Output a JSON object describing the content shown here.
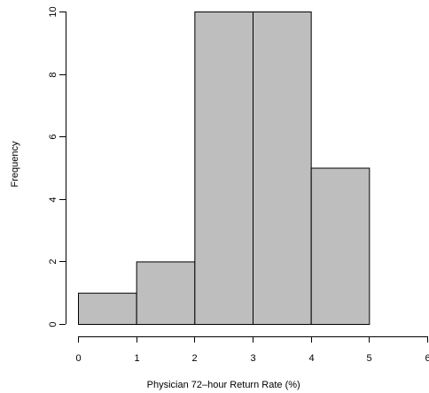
{
  "chart_data": {
    "type": "bar",
    "subtype": "histogram",
    "title": "",
    "xlabel": "Physician 72–hour Return Rate (%)",
    "ylabel": "Frequency",
    "bins": [
      {
        "from": 0,
        "to": 1,
        "count": 1
      },
      {
        "from": 1,
        "to": 2,
        "count": 2
      },
      {
        "from": 2,
        "to": 3,
        "count": 10
      },
      {
        "from": 3,
        "to": 4,
        "count": 10
      },
      {
        "from": 4,
        "to": 5,
        "count": 5
      }
    ],
    "xlim": [
      0,
      6
    ],
    "ylim": [
      0,
      10
    ],
    "x_ticks": [
      0,
      1,
      2,
      3,
      4,
      5,
      6
    ],
    "y_ticks": [
      0,
      2,
      4,
      6,
      8,
      10
    ],
    "bar_fill": "#bebebe",
    "bar_stroke": "#000000",
    "grid": false,
    "legend": "none"
  }
}
